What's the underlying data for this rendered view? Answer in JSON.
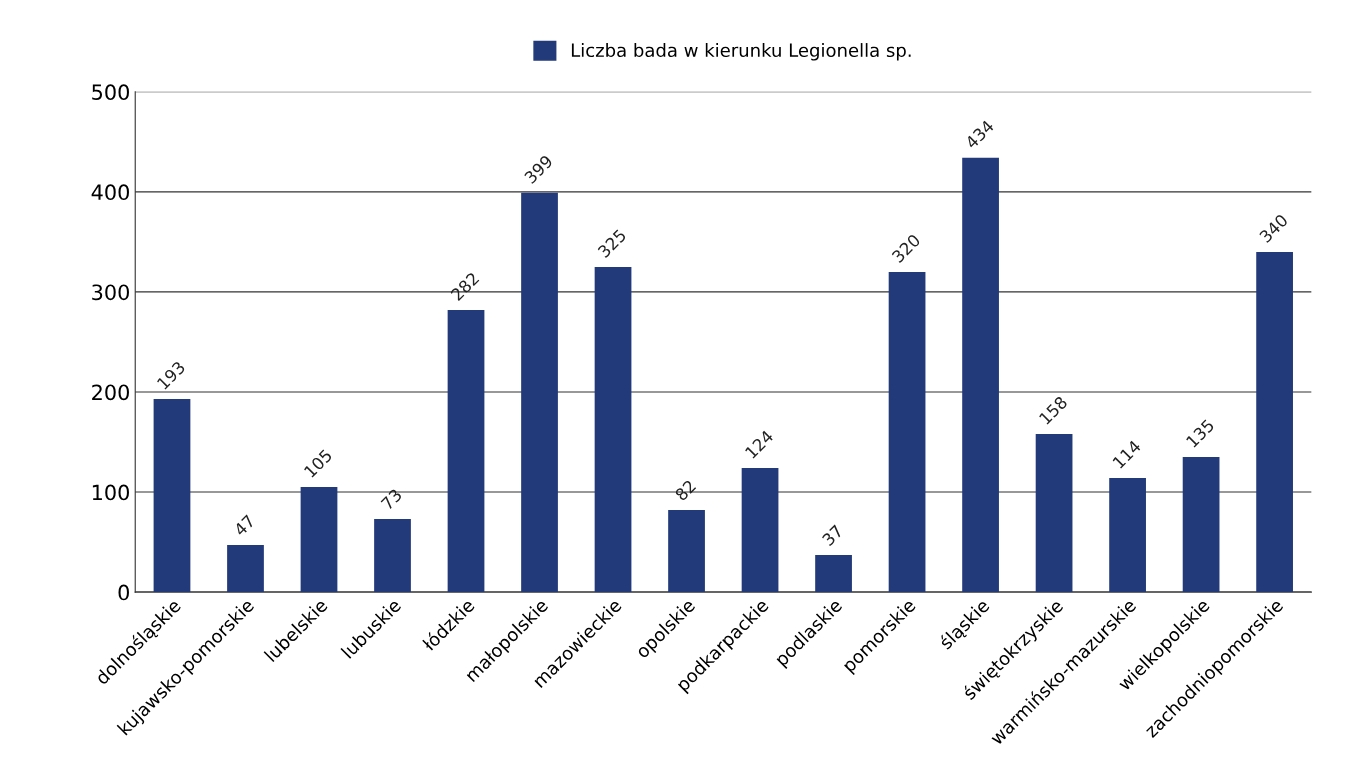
{
  "chart_data": {
    "type": "bar",
    "categories": [
      "dolnośląskie",
      "kujawsko-pomorskie",
      "lubelskie",
      "lubuskie",
      "łódzkie",
      "małopolskie",
      "mazowieckie",
      "opolskie",
      "podkarpackie",
      "podlaskie",
      "pomorskie",
      "śląskie",
      "świętokrzyskie",
      "warmińsko-mazurskie",
      "wielkopolskie",
      "zachodniopomorskie"
    ],
    "series": [
      {
        "name": "Liczba bada w kierunku Legionella sp.",
        "color": "#233a7a",
        "values": [
          193,
          47,
          105,
          73,
          282,
          399,
          325,
          82,
          124,
          37,
          320,
          434,
          158,
          114,
          135,
          340
        ]
      }
    ],
    "ylim": [
      0,
      500
    ],
    "yticks": [
      0,
      100,
      200,
      300,
      400,
      500
    ],
    "grid": "y",
    "legend": "top",
    "data_labels": true
  }
}
